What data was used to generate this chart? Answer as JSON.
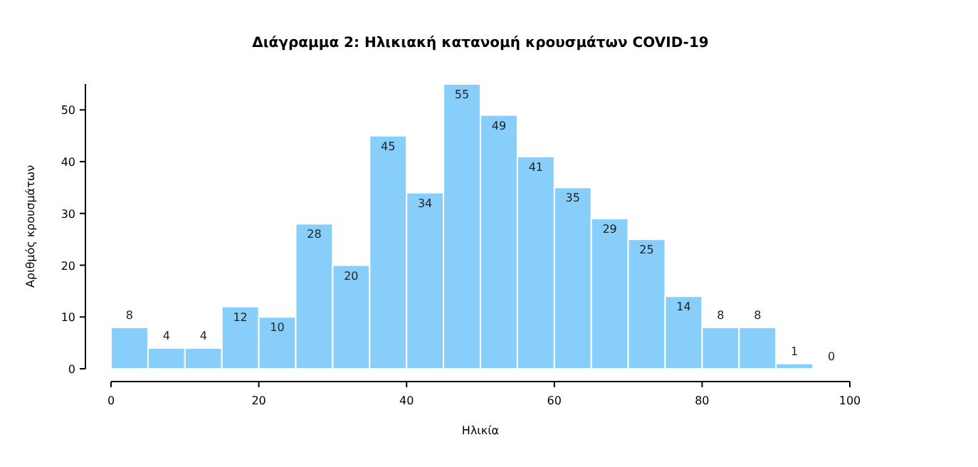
{
  "chart_data": {
    "type": "histogram",
    "title": "Διάγραμμα 2: Ηλικιακή κατανομή κρουσμάτων COVID-19",
    "xlabel": "Ηλικία",
    "ylabel": "Αριθμός κρουσμάτων",
    "bins": [
      0,
      5,
      10,
      15,
      20,
      25,
      30,
      35,
      40,
      45,
      50,
      55,
      60,
      65,
      70,
      75,
      80,
      85,
      90,
      95,
      100
    ],
    "values": [
      8,
      4,
      4,
      12,
      10,
      28,
      20,
      45,
      34,
      55,
      49,
      41,
      35,
      29,
      25,
      14,
      8,
      8,
      1,
      0
    ],
    "color": "#87cefa",
    "data_labels": true,
    "grid": false,
    "xlim": [
      0,
      100
    ],
    "xticks": [
      0,
      20,
      40,
      60,
      80,
      100
    ],
    "ylim": [
      0,
      55
    ],
    "yticks": [
      0,
      10,
      20,
      30,
      40,
      50
    ]
  }
}
